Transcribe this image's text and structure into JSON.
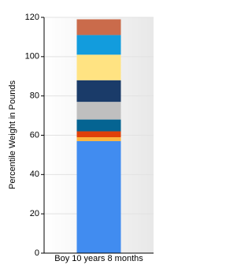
{
  "chart_data": {
    "type": "stacked_bar",
    "y_label": "Percentile Weight in Pounds",
    "categories": [
      "Boy 10 years 8 months"
    ],
    "series": [
      {
        "color": "#418cf0",
        "values": [
          57
        ]
      },
      {
        "color": "#fcb441",
        "values": [
          2
        ]
      },
      {
        "color": "#e0400a",
        "values": [
          3
        ]
      },
      {
        "color": "#056492",
        "values": [
          6
        ]
      },
      {
        "color": "#bfbfbf",
        "values": [
          9
        ]
      },
      {
        "color": "#1a3b69",
        "values": [
          11
        ]
      },
      {
        "color": "#ffe382",
        "values": [
          13
        ]
      },
      {
        "color": "#129cdd",
        "values": [
          10
        ]
      },
      {
        "color": "#ca6b4b",
        "values": [
          8
        ]
      }
    ],
    "ylim": [
      0,
      120
    ],
    "yticks": [
      0,
      20,
      40,
      60,
      80,
      100,
      120
    ],
    "grid": true
  }
}
